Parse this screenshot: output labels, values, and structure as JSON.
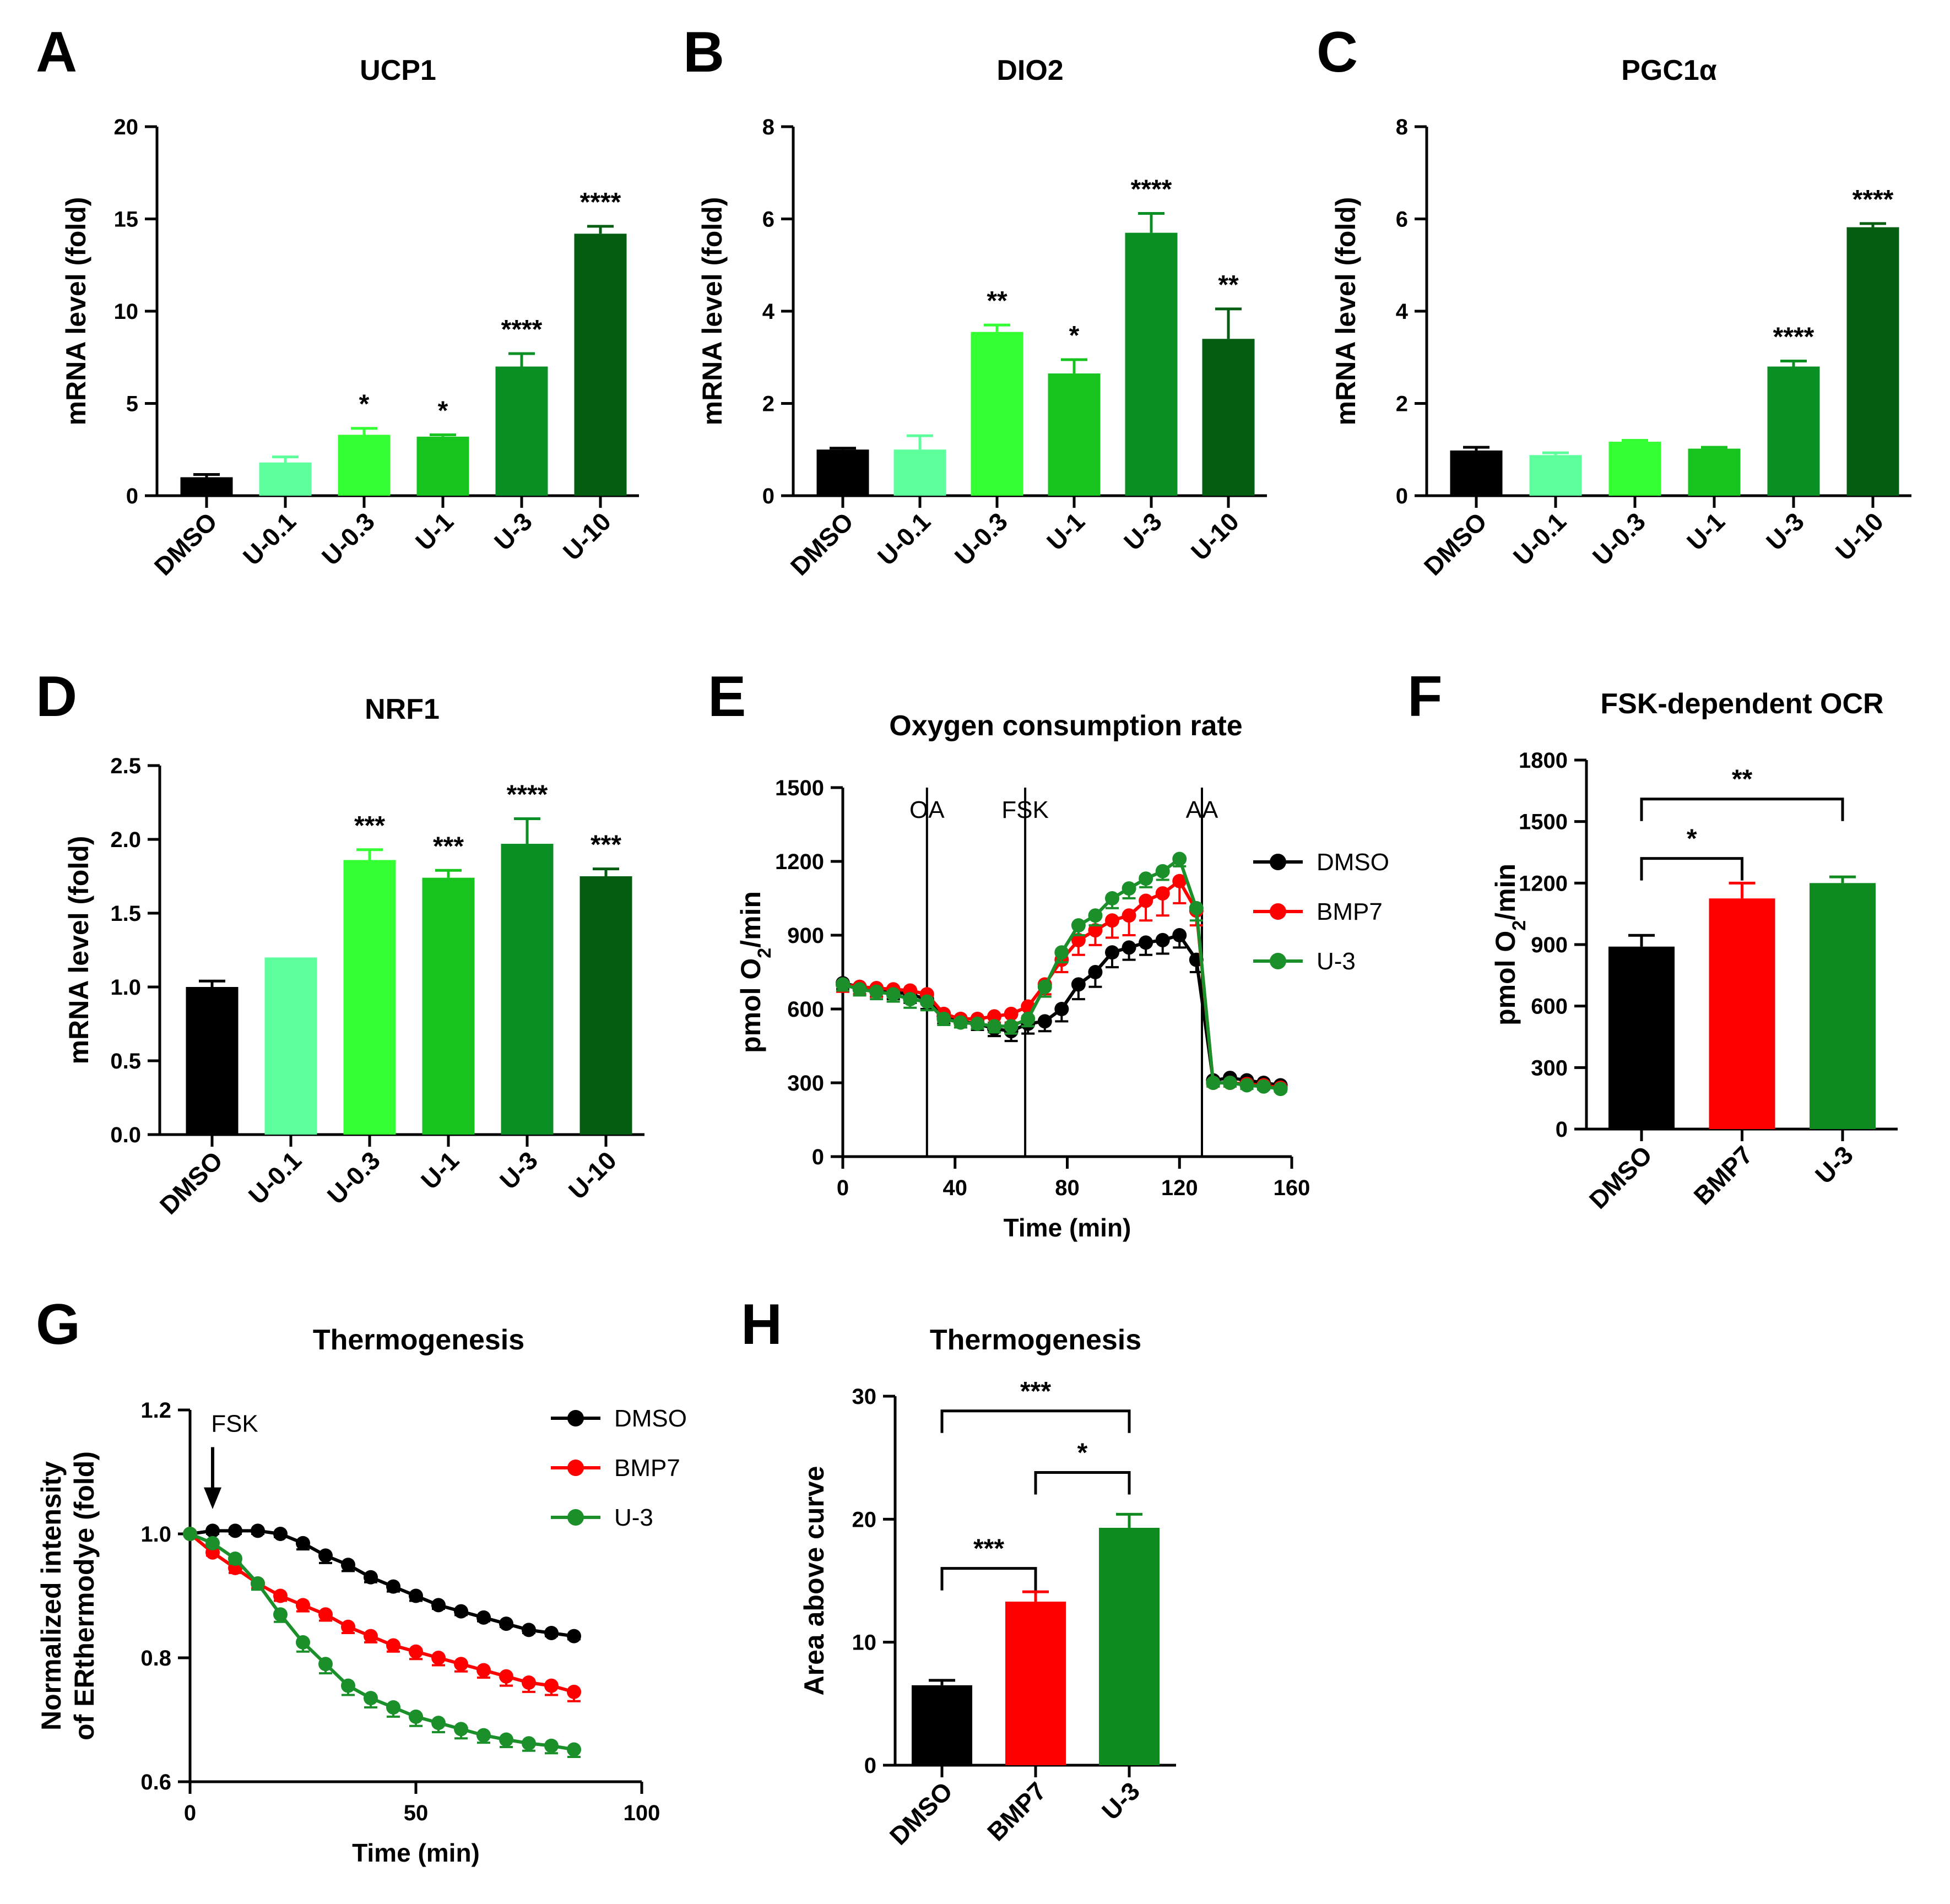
{
  "panel_labels": [
    "A",
    "B",
    "C",
    "D",
    "E",
    "F",
    "G",
    "H"
  ],
  "colors": {
    "DMSO": "#000000",
    "U-0.1": "#5cff9c",
    "U-0.3": "#33ff33",
    "U-1": "#17c41f",
    "U-3": "#0a8f24",
    "U-10": "#045e12",
    "BMP7": "#ff0000",
    "U-3-line": "#1a8f2a",
    "BMP7-bar": "#ff0000",
    "U-3-bar": "#0e8a1e"
  },
  "chart_data": [
    {
      "id": "A",
      "type": "bar",
      "title": "UCP1",
      "ylabel": "mRNA level (fold)",
      "xlabel": "",
      "ylim": [
        0,
        20
      ],
      "yticks": [
        "0",
        "5",
        "10",
        "15",
        "20"
      ],
      "categories": [
        "DMSO",
        "U-0.1",
        "U-0.3",
        "U-1",
        "U-3",
        "U-10"
      ],
      "values": [
        1.0,
        1.8,
        3.3,
        3.2,
        7.0,
        14.2
      ],
      "errors": [
        0.15,
        0.3,
        0.35,
        0.1,
        0.7,
        0.4
      ],
      "significance": [
        "",
        "",
        "*",
        "*",
        "****",
        "****"
      ]
    },
    {
      "id": "B",
      "type": "bar",
      "title": "DIO2",
      "ylabel": "mRNA level (fold)",
      "xlabel": "",
      "ylim": [
        0,
        8
      ],
      "yticks": [
        "0",
        "2",
        "4",
        "6",
        "8"
      ],
      "categories": [
        "DMSO",
        "U-0.1",
        "U-0.3",
        "U-1",
        "U-3",
        "U-10"
      ],
      "values": [
        1.0,
        1.0,
        3.55,
        2.65,
        5.7,
        3.4
      ],
      "errors": [
        0.03,
        0.3,
        0.15,
        0.3,
        0.42,
        0.65
      ],
      "significance": [
        "",
        "",
        "**",
        "*",
        "****",
        "**"
      ]
    },
    {
      "id": "C",
      "type": "bar",
      "title": "PGC1α",
      "ylabel": "mRNA level (fold)",
      "xlabel": "",
      "ylim": [
        0,
        8
      ],
      "yticks": [
        "0",
        "2",
        "4",
        "6",
        "8"
      ],
      "categories": [
        "DMSO",
        "U-0.1",
        "U-0.3",
        "U-1",
        "U-3",
        "U-10"
      ],
      "values": [
        0.98,
        0.88,
        1.17,
        1.02,
        2.8,
        5.82
      ],
      "errors": [
        0.07,
        0.05,
        0.03,
        0.03,
        0.12,
        0.08
      ],
      "significance": [
        "",
        "",
        "",
        "",
        "****",
        "****"
      ]
    },
    {
      "id": "D",
      "type": "bar",
      "title": "NRF1",
      "ylabel": "mRNA level (fold)",
      "xlabel": "",
      "ylim": [
        0,
        2.5
      ],
      "yticks": [
        "0.0",
        "0.5",
        "1.0",
        "1.5",
        "2.0",
        "2.5"
      ],
      "categories": [
        "DMSO",
        "U-0.1",
        "U-0.3",
        "U-1",
        "U-3",
        "U-10"
      ],
      "values": [
        1.0,
        1.2,
        1.86,
        1.74,
        1.97,
        1.75
      ],
      "errors": [
        0.04,
        0.0,
        0.07,
        0.05,
        0.17,
        0.05
      ],
      "significance": [
        "",
        "",
        "***",
        "***",
        "****",
        "***"
      ]
    },
    {
      "id": "E",
      "type": "line",
      "title": "Oxygen consumption rate",
      "ylabel": "pmol O2/min",
      "xlabel": "Time (min)",
      "xlim": [
        0,
        160
      ],
      "xticks": [
        "0",
        "40",
        "80",
        "120",
        "160"
      ],
      "ylim": [
        0,
        1500
      ],
      "yticks": [
        "0",
        "300",
        "600",
        "900",
        "1200",
        "1500"
      ],
      "annotations": [
        {
          "label": "OA",
          "x": 30
        },
        {
          "label": "FSK",
          "x": 65
        },
        {
          "label": "AA",
          "x": 128
        }
      ],
      "x": [
        0,
        6,
        12,
        18,
        24,
        30,
        36,
        42,
        48,
        54,
        60,
        66,
        72,
        78,
        84,
        90,
        96,
        102,
        108,
        114,
        120,
        126,
        132,
        138,
        144,
        150,
        156
      ],
      "series": [
        {
          "name": "DMSO",
          "color_key": "DMSO",
          "values": [
            705,
            690,
            680,
            670,
            660,
            640,
            570,
            550,
            540,
            520,
            510,
            540,
            550,
            600,
            700,
            750,
            830,
            850,
            870,
            880,
            900,
            800,
            310,
            320,
            310,
            300,
            290
          ],
          "errors": [
            25,
            30,
            30,
            30,
            35,
            40,
            30,
            25,
            25,
            30,
            40,
            40,
            40,
            50,
            60,
            60,
            60,
            50,
            50,
            55,
            50,
            50,
            20,
            20,
            20,
            20,
            15
          ]
        },
        {
          "name": "BMP7",
          "color_key": "BMP7",
          "values": [
            700,
            690,
            685,
            680,
            675,
            660,
            580,
            560,
            560,
            570,
            580,
            610,
            700,
            800,
            880,
            920,
            960,
            980,
            1040,
            1070,
            1120,
            1000,
            300,
            300,
            295,
            290,
            280
          ],
          "errors": [
            30,
            30,
            35,
            30,
            30,
            40,
            30,
            25,
            25,
            25,
            35,
            40,
            40,
            50,
            60,
            60,
            70,
            80,
            80,
            90,
            90,
            60,
            15,
            15,
            15,
            15,
            10
          ]
        },
        {
          "name": "U-3",
          "color_key": "U-3-line",
          "values": [
            700,
            680,
            670,
            660,
            640,
            630,
            560,
            545,
            540,
            530,
            530,
            560,
            690,
            830,
            940,
            980,
            1050,
            1090,
            1130,
            1160,
            1210,
            1010,
            300,
            300,
            290,
            285,
            275
          ],
          "errors": [
            25,
            25,
            30,
            30,
            35,
            35,
            25,
            20,
            20,
            25,
            30,
            30,
            40,
            40,
            40,
            40,
            40,
            40,
            35,
            35,
            30,
            50,
            15,
            15,
            15,
            12,
            10
          ]
        }
      ]
    },
    {
      "id": "F",
      "type": "bar",
      "title": "FSK-dependent OCR",
      "ylabel": "pmol O2/min",
      "xlabel": "",
      "ylim": [
        0,
        1800
      ],
      "yticks": [
        "0",
        "300",
        "600",
        "900",
        "1200",
        "1500",
        "1800"
      ],
      "categories": [
        "DMSO",
        "BMP7",
        "U-3"
      ],
      "color_keys": [
        "DMSO",
        "BMP7-bar",
        "U-3-bar"
      ],
      "values": [
        890,
        1125,
        1200
      ],
      "errors": [
        55,
        75,
        30
      ],
      "comparisons": [
        {
          "from": 0,
          "to": 1,
          "label": "*",
          "y": 1320
        },
        {
          "from": 0,
          "to": 2,
          "label": "**",
          "y": 1610
        }
      ]
    },
    {
      "id": "G",
      "type": "line",
      "title": "Thermogenesis",
      "ylabel": "Normalized intensity\nof ERthermodye (fold)",
      "ylabel_lines": [
        "Normalized intensity",
        "of ERthermodye (fold)"
      ],
      "xlabel": "Time (min)",
      "xlim": [
        0,
        100
      ],
      "xticks": [
        "0",
        "50",
        "100"
      ],
      "ylim": [
        0.6,
        1.2
      ],
      "yticks": [
        "0.6",
        "0.8",
        "1.0",
        "1.2"
      ],
      "arrow_annotation": {
        "label": "FSK",
        "x": 5
      },
      "x": [
        0,
        5,
        10,
        15,
        20,
        25,
        30,
        35,
        40,
        45,
        50,
        55,
        60,
        65,
        70,
        75,
        80,
        85
      ],
      "series": [
        {
          "name": "DMSO",
          "color_key": "DMSO",
          "values": [
            1.0,
            1.005,
            1.005,
            1.005,
            1.0,
            0.985,
            0.965,
            0.95,
            0.93,
            0.915,
            0.9,
            0.885,
            0.875,
            0.865,
            0.855,
            0.845,
            0.84,
            0.835
          ],
          "errors": [
            0,
            0.005,
            0.005,
            0.005,
            0.005,
            0.01,
            0.012,
            0.01,
            0.008,
            0.008,
            0.008,
            0.006,
            0.006,
            0.006,
            0.005,
            0.005,
            0.005,
            0.005
          ]
        },
        {
          "name": "BMP7",
          "color_key": "BMP7",
          "values": [
            1.0,
            0.97,
            0.945,
            0.92,
            0.9,
            0.885,
            0.87,
            0.85,
            0.835,
            0.82,
            0.81,
            0.8,
            0.79,
            0.78,
            0.77,
            0.76,
            0.755,
            0.745
          ],
          "errors": [
            0,
            0.005,
            0.008,
            0.008,
            0.008,
            0.01,
            0.01,
            0.01,
            0.01,
            0.01,
            0.012,
            0.012,
            0.012,
            0.012,
            0.015,
            0.015,
            0.015,
            0.015
          ]
        },
        {
          "name": "U-3",
          "color_key": "U-3-line",
          "values": [
            1.0,
            0.985,
            0.96,
            0.92,
            0.87,
            0.825,
            0.79,
            0.755,
            0.735,
            0.72,
            0.705,
            0.695,
            0.685,
            0.675,
            0.668,
            0.662,
            0.658,
            0.652
          ],
          "errors": [
            0,
            0.005,
            0.008,
            0.01,
            0.012,
            0.015,
            0.015,
            0.015,
            0.015,
            0.015,
            0.015,
            0.015,
            0.015,
            0.012,
            0.012,
            0.012,
            0.012,
            0.012
          ]
        }
      ]
    },
    {
      "id": "H",
      "type": "bar",
      "title": "Thermogenesis",
      "ylabel": "Area above curve",
      "xlabel": "",
      "ylim": [
        0,
        30
      ],
      "yticks": [
        "0",
        "10",
        "20",
        "30"
      ],
      "categories": [
        "DMSO",
        "BMP7",
        "U-3"
      ],
      "color_keys": [
        "DMSO",
        "BMP7-bar",
        "U-3-bar"
      ],
      "values": [
        6.5,
        13.3,
        19.3
      ],
      "errors": [
        0.4,
        0.8,
        1.1
      ],
      "comparisons": [
        {
          "from": 0,
          "to": 1,
          "label": "***",
          "y": 16.0
        },
        {
          "from": 1,
          "to": 2,
          "label": "*",
          "y": 23.8
        },
        {
          "from": 0,
          "to": 2,
          "label": "***",
          "y": 28.8
        }
      ]
    }
  ]
}
